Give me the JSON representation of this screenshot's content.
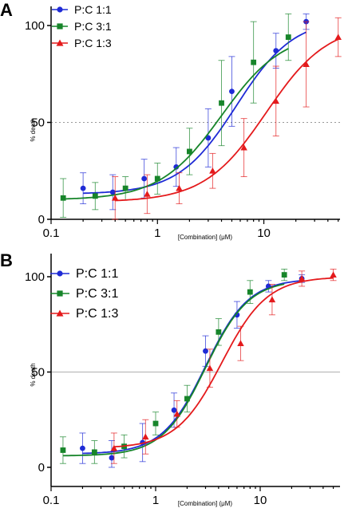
{
  "chart_data": [
    {
      "panel": "A",
      "type": "scatter",
      "xlabel": "[Combination] (μM)",
      "ylabel": "% death",
      "xscale": "log",
      "xlim": [
        0.1,
        50
      ],
      "ylim": [
        0,
        105
      ],
      "yticks": [
        0,
        50,
        100
      ],
      "xticks": [
        {
          "value": 0.1,
          "label": "0.1"
        },
        {
          "value": 1,
          "label": "1"
        },
        {
          "value": 10,
          "label": "10"
        }
      ],
      "reference_line": {
        "y": 50,
        "style": "dotted",
        "color": "#999999"
      },
      "legend_position": "top-left",
      "series": [
        {
          "name": "P:C 1:1",
          "color": "#1f2bd6",
          "marker": "circle",
          "x": [
            0.2,
            0.38,
            0.75,
            1.5,
            3.0,
            5.0,
            13.0,
            25.0
          ],
          "y": [
            16,
            14,
            21,
            27,
            42,
            66,
            87,
            102
          ],
          "err": [
            8,
            9,
            10,
            10,
            15,
            18,
            9,
            4
          ],
          "fit": {
            "bottom": 13,
            "top": 104,
            "ec50": 5.5,
            "hill": 1.6,
            "x_range": [
              0.2,
              25
            ]
          }
        },
        {
          "name": "P:C 3:1",
          "color": "#17852a",
          "marker": "square",
          "x": [
            0.13,
            0.26,
            0.5,
            1.0,
            2.0,
            4.0,
            8.0,
            17.0
          ],
          "y": [
            11,
            12,
            16,
            21,
            35,
            60,
            81,
            94
          ],
          "err": [
            10,
            7,
            6,
            8,
            12,
            22,
            21,
            12
          ],
          "fit": {
            "bottom": 10,
            "top": 97,
            "ec50": 4.0,
            "hill": 1.5,
            "x_range": [
              0.13,
              17
            ]
          }
        },
        {
          "name": "P:C 1:3",
          "color": "#e41a1c",
          "marker": "triangle",
          "x": [
            0.4,
            0.8,
            1.6,
            3.3,
            6.5,
            13.0,
            25.0,
            50.0
          ],
          "y": [
            11,
            13,
            16,
            25,
            37,
            61,
            80,
            94
          ],
          "err": [
            11,
            10,
            8,
            9,
            15,
            18,
            22,
            10
          ],
          "fit": {
            "bottom": 9,
            "top": 101,
            "ec50": 10.5,
            "hill": 1.5,
            "x_range": [
              0.4,
              50
            ]
          }
        }
      ]
    },
    {
      "panel": "B",
      "type": "scatter",
      "xlabel": "[Combination] (μM)",
      "ylabel": "% death",
      "xscale": "log",
      "xlim": [
        0.1,
        70
      ],
      "ylim": [
        0,
        105
      ],
      "yticks": [
        0,
        50,
        100
      ],
      "xticks": [
        {
          "value": 0.1,
          "label": "0.1"
        },
        {
          "value": 1,
          "label": "1"
        },
        {
          "value": 10,
          "label": "10"
        }
      ],
      "reference_line": {
        "y": 50,
        "style": "solid",
        "color": "#b0b0b0"
      },
      "legend_position": "top-left",
      "series": [
        {
          "name": "P:C 1:1",
          "color": "#1f2bd6",
          "marker": "circle",
          "x": [
            0.2,
            0.38,
            0.75,
            1.5,
            3.0,
            6.0,
            12.0,
            25.0
          ],
          "y": [
            10,
            5,
            13,
            30,
            61,
            80,
            95,
            99
          ],
          "err": [
            8,
            9,
            10,
            9,
            8,
            7,
            3,
            2
          ],
          "fit": {
            "bottom": 7,
            "top": 99,
            "ec50": 3.0,
            "hill": 2.1,
            "x_range": [
              0.2,
              25
            ]
          }
        },
        {
          "name": "P:C 3:1",
          "color": "#17852a",
          "marker": "square",
          "x": [
            0.13,
            0.26,
            0.5,
            1.0,
            2.0,
            4.0,
            8.0,
            17.0
          ],
          "y": [
            9,
            8,
            11,
            23,
            36,
            71,
            92,
            101
          ],
          "err": [
            7,
            6,
            6,
            6,
            7,
            7,
            6,
            3
          ],
          "fit": {
            "bottom": 6,
            "top": 98.5,
            "ec50": 3.0,
            "hill": 2.1,
            "x_range": [
              0.13,
              17
            ]
          }
        },
        {
          "name": "P:C 1:3",
          "color": "#e41a1c",
          "marker": "triangle",
          "x": [
            0.4,
            0.8,
            1.6,
            3.3,
            6.5,
            13.0,
            25.0,
            50.0
          ],
          "y": [
            10,
            16,
            28,
            52,
            65,
            88,
            99,
            101
          ],
          "err": [
            8,
            9,
            7,
            10,
            9,
            8,
            4,
            3
          ],
          "fit": {
            "bottom": 10,
            "top": 100,
            "ec50": 4.3,
            "hill": 2.0,
            "x_range": [
              0.4,
              50
            ]
          }
        }
      ]
    }
  ]
}
